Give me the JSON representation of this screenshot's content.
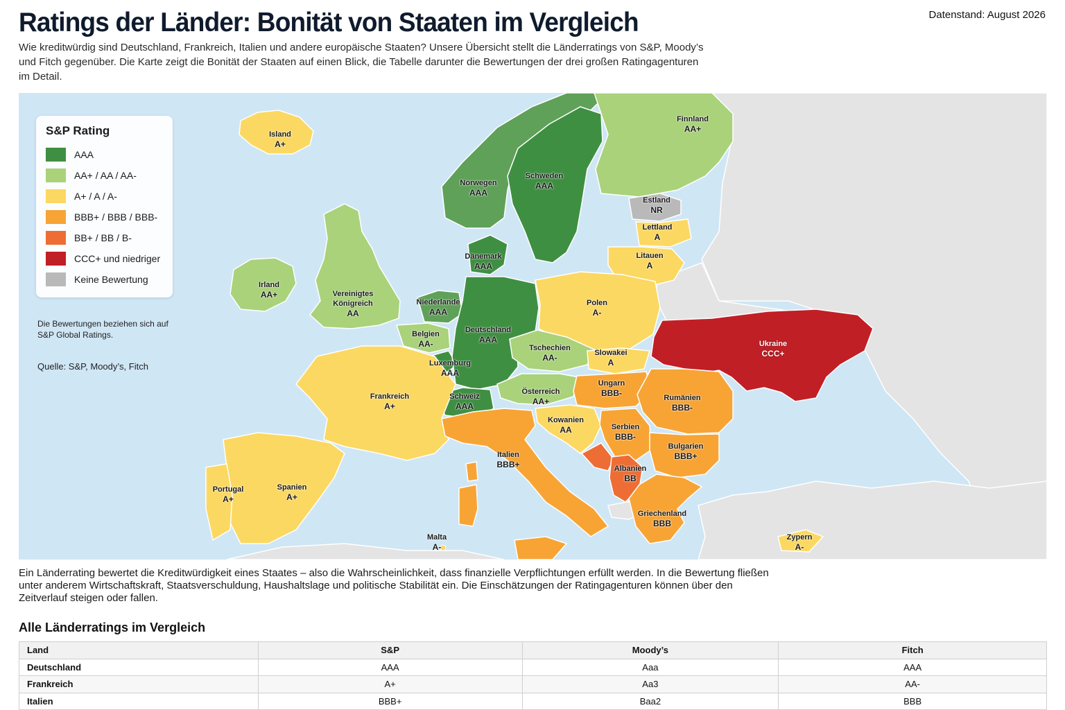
{
  "header": {
    "title": "Ratings der Länder: Bonität von Staaten im Vergleich",
    "date": "Datenstand: August 2026",
    "subtitle": "Wie kreditwürdig sind Deutschland, Frankreich, Italien und andere europäische Staaten? Unsere Übersicht stellt die Länderratings von S&P, Moody’s und Fitch gegenüber. Die Karte zeigt die Bonität der Staaten auf einen Blick, die Tabelle darunter die Bewertungen der drei großen Ratingagenturen im Detail."
  },
  "legend": {
    "title": "S&P Rating",
    "items": [
      {
        "label": "AAA",
        "color": "#3f8f43"
      },
      {
        "label": "AA+ / AA / AA-",
        "color": "#a9d27a"
      },
      {
        "label": "A+ / A / A-",
        "color": "#fbd862"
      },
      {
        "label": "BBB+ / BBB / BBB-",
        "color": "#f7a435"
      },
      {
        "label": "BB+ / BB / B-",
        "color": "#ee6d35"
      },
      {
        "label": "CCC+ und niedriger",
        "color": "#c11f26"
      },
      {
        "label": "Keine Bewertung",
        "color": "#b9b9b9"
      }
    ],
    "note": "Die Bewertungen beziehen sich auf S&P Global Ratings.",
    "source": "Quelle: S&P, Moody’s, Fitch"
  },
  "map": {
    "colors": {
      "sea": "#cfe6f5",
      "non_eu_land": "#e4e4e4"
    },
    "countries": [
      {
        "name": "Island",
        "rating": "A+"
      },
      {
        "name": "Irland",
        "rating": "AA+"
      },
      {
        "name": "Vereinigtes Königreich",
        "rating": "AA"
      },
      {
        "name": "Norwegen",
        "rating": "AAA"
      },
      {
        "name": "Schweden",
        "rating": "AAA"
      },
      {
        "name": "Finnland",
        "rating": "AA+"
      },
      {
        "name": "Estland",
        "rating": "NR"
      },
      {
        "name": "Lettland",
        "rating": "A"
      },
      {
        "name": "Litauen",
        "rating": "A"
      },
      {
        "name": "Dänemark",
        "rating": "AAA"
      },
      {
        "name": "Niederlande",
        "rating": "AAA"
      },
      {
        "name": "Belgien",
        "rating": "AA-"
      },
      {
        "name": "Luxemburg",
        "rating": "AAA"
      },
      {
        "name": "Deutschland",
        "rating": "AAA"
      },
      {
        "name": "Polen",
        "rating": "A-"
      },
      {
        "name": "Tschechien",
        "rating": "AA-"
      },
      {
        "name": "Slowakei",
        "rating": "A"
      },
      {
        "name": "Ukraine",
        "rating": "CCC+"
      },
      {
        "name": "Frankreich",
        "rating": "A+"
      },
      {
        "name": "Schweiz",
        "rating": "AAA"
      },
      {
        "name": "Österreich",
        "rating": "AA+"
      },
      {
        "name": "Ungarn",
        "rating": "BBB-"
      },
      {
        "name": "Rumänien",
        "rating": "BBB-"
      },
      {
        "name": "Kowanien",
        "rating": "AA"
      },
      {
        "name": "Serbien",
        "rating": "BBB-"
      },
      {
        "name": "Bulgarien",
        "rating": "BBB+"
      },
      {
        "name": "Italien",
        "rating": "BBB+"
      },
      {
        "name": "Albanien",
        "rating": "BB"
      },
      {
        "name": "Portugal",
        "rating": "A+"
      },
      {
        "name": "Spanien",
        "rating": "A+"
      },
      {
        "name": "Griechenland",
        "rating": "BBB"
      },
      {
        "name": "Malta",
        "rating": "A-"
      },
      {
        "name": "Zypern",
        "rating": "A-"
      }
    ]
  },
  "body_text": "Ein Länderrating bewertet die Kreditwürdigkeit eines Staates – also die Wahrscheinlichkeit, dass finanzielle Verpflichtungen erfüllt werden. In die Bewertung fließen unter anderem Wirtschaftskraft, Staatsverschuldung, Haushaltslage und politische Stabilität ein. Die Einschätzungen der Ratingagenturen können über den Zeitverlauf steigen oder fallen.",
  "table": {
    "title": "Alle Länderratings im Vergleich",
    "headers": [
      "Land",
      "S&P",
      "Moody’s",
      "Fitch"
    ],
    "rows": [
      [
        "Deutschland",
        "AAA",
        "Aaa",
        "AAA"
      ],
      [
        "Frankreich",
        "A+",
        "Aa3",
        "AA-"
      ],
      [
        "Italien",
        "BBB+",
        "Baa2",
        "BBB"
      ]
    ]
  }
}
